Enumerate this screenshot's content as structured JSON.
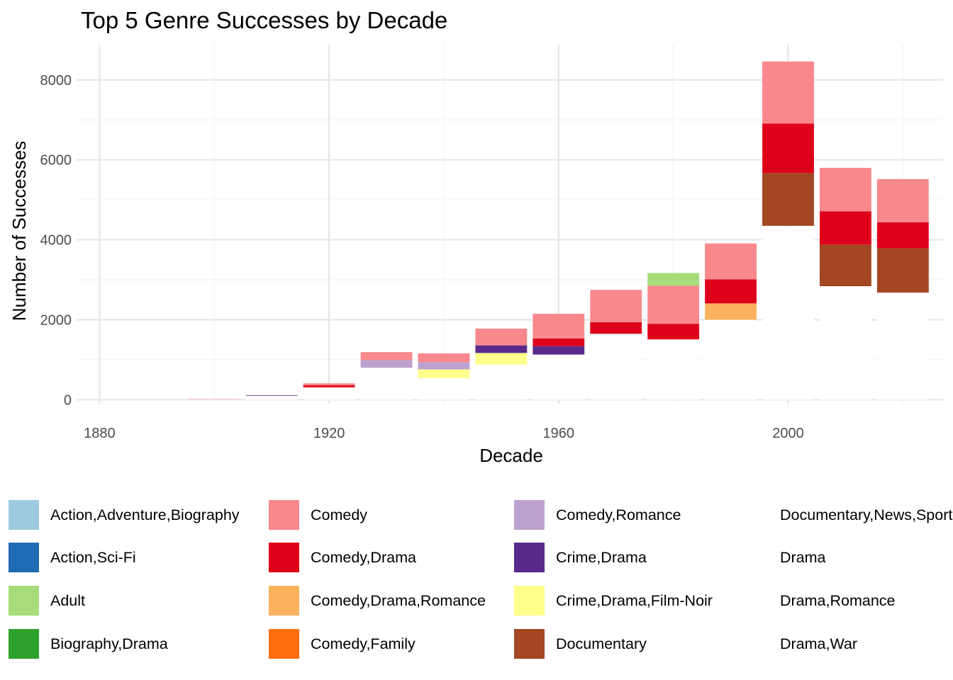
{
  "chart_data": {
    "type": "bar",
    "stacked": true,
    "title": "Top 5 Genre Successes by Decade",
    "xlabel": "Decade",
    "ylabel": "Number of Successes",
    "xlim": [
      1876,
      2027
    ],
    "ylim": [
      -100,
      8900
    ],
    "x_ticks": [
      1880,
      1920,
      1960,
      2000
    ],
    "y_ticks": [
      0,
      2000,
      4000,
      6000,
      8000
    ],
    "grid": true,
    "legend_position": "bottom",
    "legend": [
      {
        "label": "Action,Adventure,Biography",
        "color": "#9ecae1"
      },
      {
        "label": "Action,Sci-Fi",
        "color": "#1f6bb4"
      },
      {
        "label": "Adult",
        "color": "#a6dd7a"
      },
      {
        "label": "Biography,Drama",
        "color": "#2ea02c"
      },
      {
        "label": "Comedy",
        "color": "#f8888b"
      },
      {
        "label": "Comedy,Drama",
        "color": "#de001b"
      },
      {
        "label": "Comedy,Drama,Romance",
        "color": "#fbb25e"
      },
      {
        "label": "Comedy,Family",
        "color": "#ff6f0e"
      },
      {
        "label": "Comedy,Romance",
        "color": "#bda2cf"
      },
      {
        "label": "Crime,Drama",
        "color": "#582a8c"
      },
      {
        "label": "Crime,Drama,Film-Noir",
        "color": "#ffff8c"
      },
      {
        "label": "Documentary",
        "color": "#a34622"
      },
      {
        "label": "Documentary,News,Sport",
        "color": "#ffffff"
      },
      {
        "label": "Drama",
        "color": "#ffffff"
      },
      {
        "label": "Drama,Romance",
        "color": "#ffffff"
      },
      {
        "label": "Drama,War",
        "color": "#ffffff"
      }
    ],
    "bars": [
      {
        "decade": 1900,
        "segments": [
          {
            "genre": "Drama",
            "value": 15
          },
          {
            "genre": "Comedy",
            "value": 5
          }
        ]
      },
      {
        "decade": 1910,
        "segments": [
          {
            "genre": "Drama",
            "value": 100
          },
          {
            "genre": "Crime,Drama",
            "value": 15
          }
        ]
      },
      {
        "decade": 1920,
        "segments": [
          {
            "genre": "Drama",
            "value": 310
          },
          {
            "genre": "Comedy,Drama",
            "value": 50
          },
          {
            "genre": "Comedy",
            "value": 50
          }
        ]
      },
      {
        "decade": 1930,
        "segments": [
          {
            "genre": "Drama",
            "value": 800
          },
          {
            "genre": "Comedy,Romance",
            "value": 190
          },
          {
            "genre": "Comedy",
            "value": 200
          }
        ]
      },
      {
        "decade": 1940,
        "segments": [
          {
            "genre": "Drama",
            "value": 540
          },
          {
            "genre": "Crime,Drama,Film-Noir",
            "value": 220
          },
          {
            "genre": "Comedy,Romance",
            "value": 180
          },
          {
            "genre": "Comedy",
            "value": 220
          }
        ]
      },
      {
        "decade": 1950,
        "segments": [
          {
            "genre": "Drama",
            "value": 880
          },
          {
            "genre": "Crime,Drama,Film-Noir",
            "value": 290
          },
          {
            "genre": "Crime,Drama",
            "value": 190
          },
          {
            "genre": "Comedy",
            "value": 420
          }
        ]
      },
      {
        "decade": 1960,
        "segments": [
          {
            "genre": "Drama",
            "value": 1130
          },
          {
            "genre": "Crime,Drama",
            "value": 210
          },
          {
            "genre": "Comedy,Drama",
            "value": 190
          },
          {
            "genre": "Comedy",
            "value": 620
          }
        ]
      },
      {
        "decade": 1970,
        "segments": [
          {
            "genre": "Drama",
            "value": 1650
          },
          {
            "genre": "Comedy,Drama",
            "value": 290
          },
          {
            "genre": "Comedy",
            "value": 810
          }
        ]
      },
      {
        "decade": 1980,
        "segments": [
          {
            "genre": "Drama",
            "value": 1510
          },
          {
            "genre": "Comedy,Drama",
            "value": 390
          },
          {
            "genre": "Comedy",
            "value": 950
          },
          {
            "genre": "Adult",
            "value": 320
          }
        ]
      },
      {
        "decade": 1990,
        "segments": [
          {
            "genre": "Drama",
            "value": 2000
          },
          {
            "genre": "Comedy,Drama,Romance",
            "value": 410
          },
          {
            "genre": "Comedy,Drama",
            "value": 600
          },
          {
            "genre": "Comedy",
            "value": 900
          }
        ]
      },
      {
        "decade": 2000,
        "segments": [
          {
            "genre": "Drama",
            "value": 4350
          },
          {
            "genre": "Documentary",
            "value": 1320
          },
          {
            "genre": "Comedy,Drama",
            "value": 1240
          },
          {
            "genre": "Comedy",
            "value": 1550
          }
        ]
      },
      {
        "decade": 2010,
        "segments": [
          {
            "genre": "Drama",
            "value": 2840
          },
          {
            "genre": "Documentary",
            "value": 1040
          },
          {
            "genre": "Comedy,Drama",
            "value": 830
          },
          {
            "genre": "Comedy",
            "value": 1090
          }
        ]
      },
      {
        "decade": 2020,
        "segments": [
          {
            "genre": "Drama",
            "value": 2680
          },
          {
            "genre": "Documentary",
            "value": 1110
          },
          {
            "genre": "Comedy,Drama",
            "value": 650
          },
          {
            "genre": "Comedy",
            "value": 1080
          }
        ]
      }
    ]
  }
}
